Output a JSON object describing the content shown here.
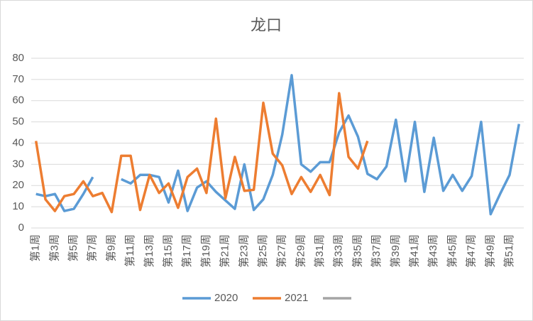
{
  "chart_data": {
    "type": "line",
    "title": "龙口",
    "categories": [
      "第1周",
      null,
      "第3周",
      null,
      "第5周",
      null,
      "第7周",
      null,
      "第9周",
      null,
      "第11周",
      null,
      "第13周",
      null,
      "第15周",
      null,
      "第17周",
      null,
      "第19周",
      null,
      "第21周",
      null,
      "第23周",
      null,
      "第25周",
      null,
      "第27周",
      null,
      "第29周",
      null,
      "第31周",
      null,
      "第33周",
      null,
      "第35周",
      null,
      "第37周",
      null,
      "第39周",
      null,
      "第41周",
      null,
      "第43周",
      null,
      "第45周",
      null,
      "第47周",
      null,
      "第49周",
      null,
      "第51周",
      null
    ],
    "series": [
      {
        "name": "2020",
        "color": "#5b9bd5",
        "values": [
          16,
          15,
          16,
          8,
          9,
          16,
          24,
          null,
          null,
          23,
          21,
          25,
          25,
          24,
          12,
          27,
          8,
          19,
          22,
          17,
          13,
          9,
          30,
          8.5,
          13.5,
          25,
          44,
          72,
          30,
          26.5,
          31,
          31,
          45,
          53,
          43,
          25.5,
          23,
          29,
          51,
          22,
          50,
          17,
          42.5,
          17.5,
          25,
          17.5,
          24.5,
          50,
          6.5,
          16,
          25,
          49
        ]
      },
      {
        "name": "2021",
        "color": "#ed7d31",
        "values": [
          41,
          13.5,
          8,
          15,
          16,
          22,
          15,
          16.5,
          7.5,
          34,
          34,
          8.5,
          25,
          16.5,
          21,
          9.5,
          24,
          28,
          16.5,
          51.5,
          14,
          33.5,
          17.5,
          18,
          59,
          35,
          29.5,
          16,
          24,
          17,
          25,
          15.5,
          63.5,
          33.5,
          28,
          41,
          null,
          null,
          null,
          null,
          null,
          null,
          null,
          null,
          null,
          null,
          null,
          null,
          null,
          null,
          null,
          null
        ]
      },
      {
        "name": null,
        "color": "#a5a5a5",
        "values": [
          null,
          null,
          null,
          null,
          null,
          null,
          null,
          null,
          null,
          null,
          null,
          null,
          null,
          null,
          null,
          null,
          null,
          null,
          null,
          null,
          null,
          null,
          null,
          null,
          null,
          null,
          null,
          null,
          null,
          null,
          null,
          null,
          null,
          null,
          null,
          null,
          null,
          null,
          null,
          null,
          null,
          null,
          null,
          null,
          null,
          null,
          null,
          null,
          null,
          null,
          null,
          null
        ]
      }
    ],
    "ylim": [
      0,
      80
    ],
    "yticks": [
      0,
      10,
      20,
      30,
      40,
      50,
      60,
      70,
      80
    ],
    "grid": true,
    "legend": "bottom"
  }
}
